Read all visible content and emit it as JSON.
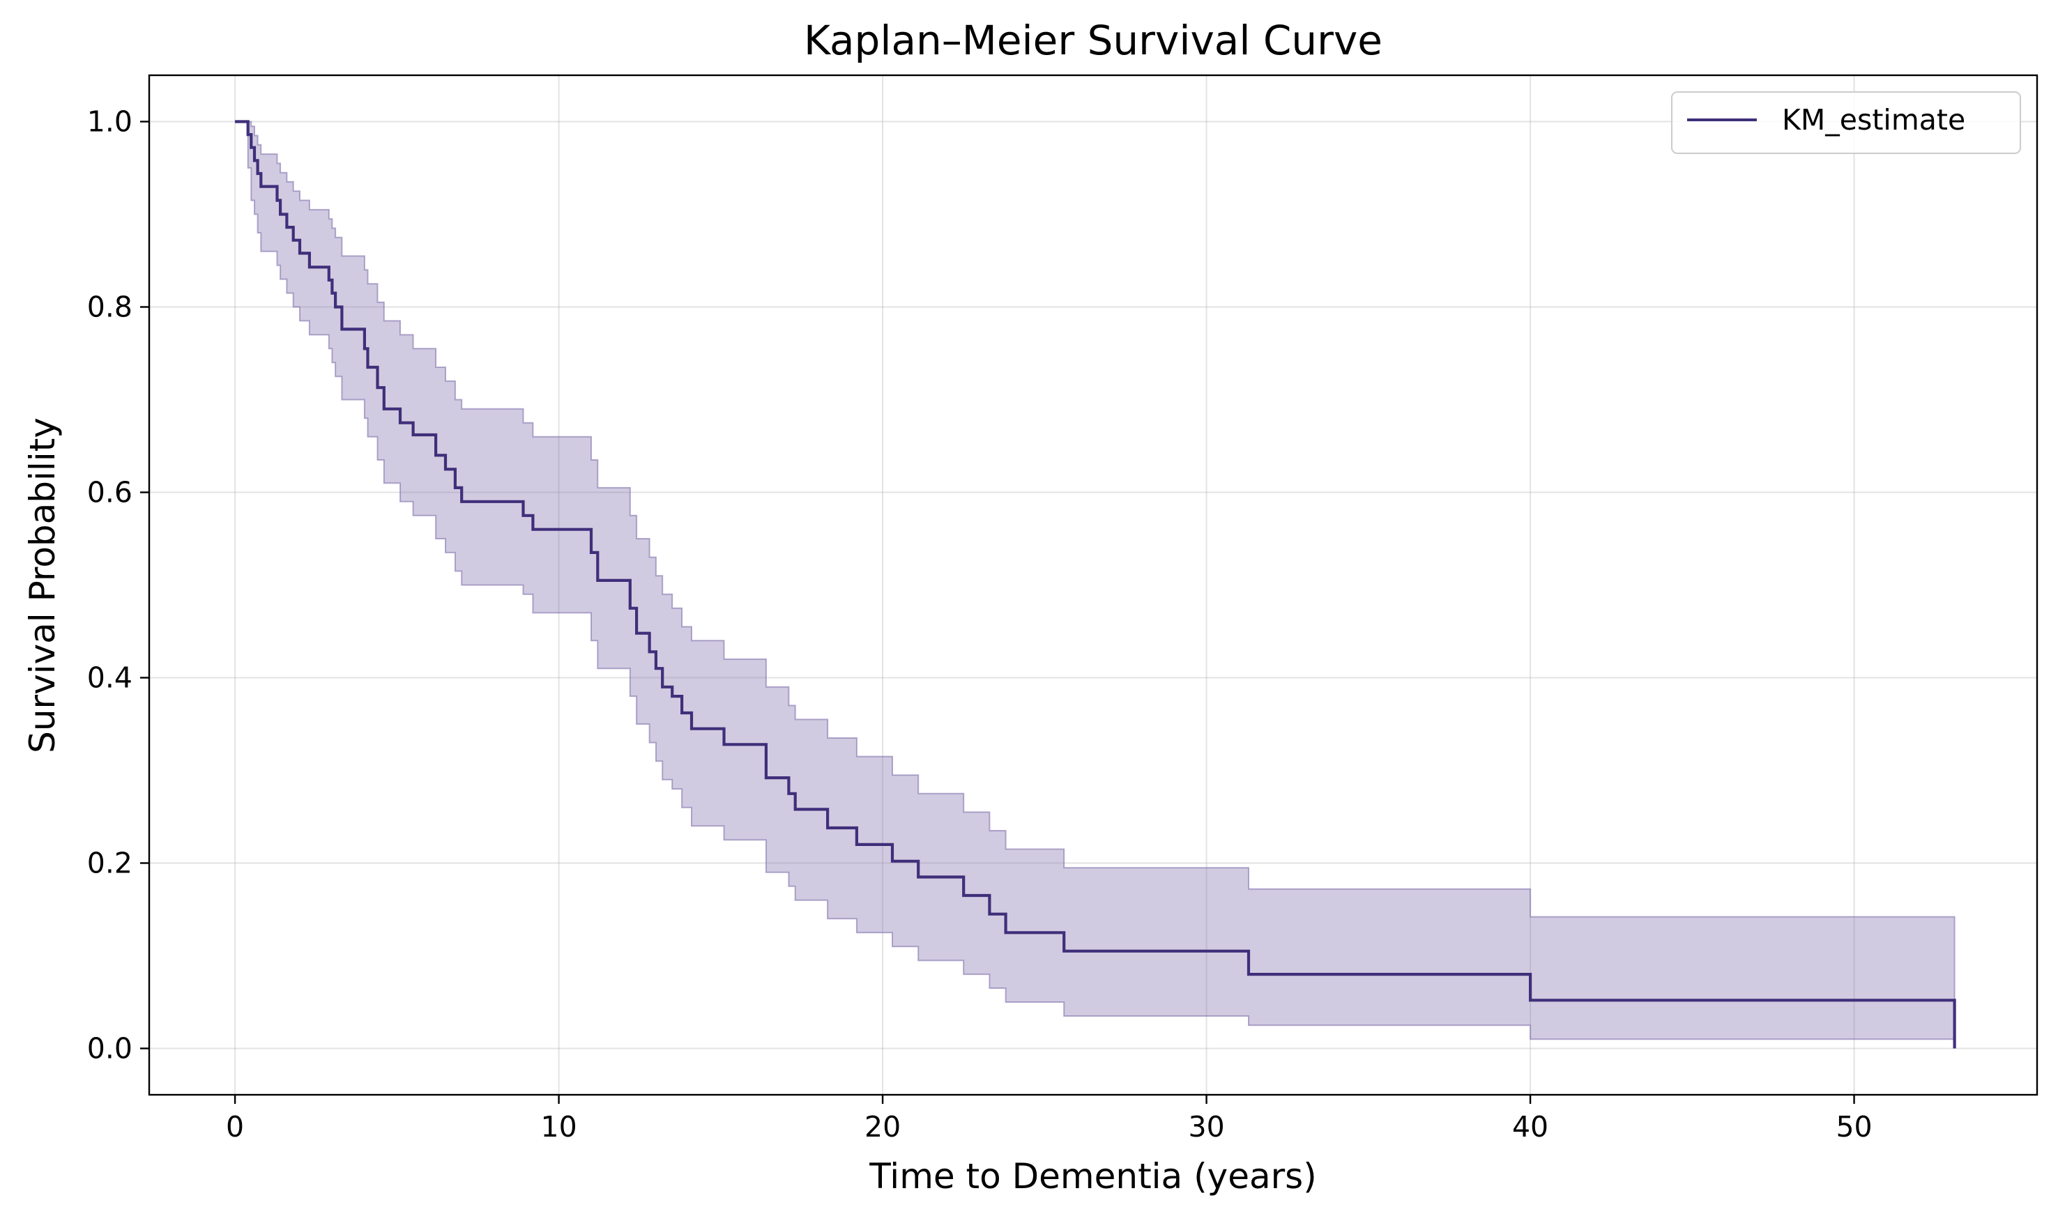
{
  "chart_data": {
    "type": "line",
    "title": "Kaplan–Meier Survival Curve",
    "xlabel": "Time to Dementia (years)",
    "ylabel": "Survival Probability",
    "xlim": [
      -2.65,
      55.65
    ],
    "ylim": [
      -0.05,
      1.05
    ],
    "xticks": [
      0,
      10,
      20,
      30,
      40,
      50
    ],
    "yticks": [
      0.0,
      0.2,
      0.4,
      0.6,
      0.8,
      1.0
    ],
    "x_tick_labels": [
      "0",
      "10",
      "20",
      "30",
      "40",
      "50"
    ],
    "y_tick_labels": [
      "0.0",
      "0.2",
      "0.4",
      "0.6",
      "0.8",
      "1.0"
    ],
    "grid": true,
    "legend_position": "upper right",
    "series": [
      {
        "name": "KM_estimate",
        "color": "#3f2f7a",
        "band_color": "#7a6aa8",
        "style": "step-post",
        "x": [
          0,
          0.4,
          0.5,
          0.6,
          0.7,
          0.8,
          1.3,
          1.4,
          1.6,
          1.8,
          2.0,
          2.3,
          2.9,
          3.0,
          3.1,
          3.3,
          4.0,
          4.1,
          4.4,
          4.6,
          5.1,
          5.5,
          6.2,
          6.5,
          6.8,
          7.0,
          8.9,
          9.2,
          11.0,
          11.2,
          12.2,
          12.4,
          12.8,
          13.0,
          13.2,
          13.5,
          13.8,
          14.1,
          15.1,
          16.4,
          17.1,
          17.3,
          18.3,
          19.2,
          20.3,
          21.1,
          22.5,
          23.3,
          23.8,
          25.6,
          31.3,
          40.0,
          53.1
        ],
        "y": [
          1.0,
          0.986,
          0.972,
          0.958,
          0.944,
          0.93,
          0.915,
          0.9,
          0.886,
          0.872,
          0.858,
          0.843,
          0.829,
          0.815,
          0.8,
          0.776,
          0.755,
          0.735,
          0.713,
          0.69,
          0.675,
          0.662,
          0.64,
          0.625,
          0.605,
          0.59,
          0.575,
          0.56,
          0.535,
          0.505,
          0.475,
          0.448,
          0.428,
          0.41,
          0.39,
          0.38,
          0.362,
          0.345,
          0.328,
          0.292,
          0.275,
          0.258,
          0.238,
          0.22,
          0.202,
          0.185,
          0.165,
          0.145,
          0.125,
          0.105,
          0.08,
          0.052,
          0.027
        ],
        "end": [
          53.1,
          0.0
        ],
        "ci_lower": [
          1.0,
          0.95,
          0.915,
          0.9,
          0.88,
          0.86,
          0.845,
          0.83,
          0.815,
          0.8,
          0.785,
          0.77,
          0.755,
          0.74,
          0.725,
          0.7,
          0.68,
          0.66,
          0.635,
          0.61,
          0.59,
          0.575,
          0.55,
          0.535,
          0.515,
          0.5,
          0.49,
          0.47,
          0.44,
          0.41,
          0.38,
          0.35,
          0.33,
          0.31,
          0.29,
          0.28,
          0.26,
          0.24,
          0.225,
          0.19,
          0.175,
          0.16,
          0.14,
          0.125,
          0.11,
          0.095,
          0.08,
          0.065,
          0.05,
          0.035,
          0.025,
          0.01,
          0.002
        ],
        "ci_upper": [
          1.0,
          1.0,
          0.995,
          0.985,
          0.975,
          0.965,
          0.955,
          0.945,
          0.935,
          0.925,
          0.915,
          0.905,
          0.895,
          0.885,
          0.875,
          0.855,
          0.84,
          0.825,
          0.805,
          0.785,
          0.77,
          0.755,
          0.735,
          0.72,
          0.7,
          0.69,
          0.675,
          0.66,
          0.635,
          0.605,
          0.575,
          0.55,
          0.53,
          0.51,
          0.49,
          0.475,
          0.455,
          0.44,
          0.42,
          0.39,
          0.37,
          0.355,
          0.335,
          0.315,
          0.295,
          0.275,
          0.255,
          0.235,
          0.215,
          0.195,
          0.172,
          0.142,
          0.112
        ]
      }
    ]
  }
}
